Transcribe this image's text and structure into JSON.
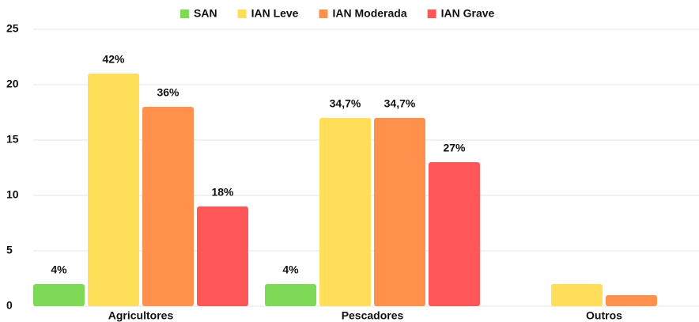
{
  "chart_data": {
    "type": "bar",
    "categories": [
      "Agricultores",
      "Pescadores",
      "Outros"
    ],
    "series": [
      {
        "name": "SAN",
        "color": "#7ed957",
        "values": [
          2,
          2,
          null
        ],
        "value_labels": [
          "4%",
          "4%",
          null
        ]
      },
      {
        "name": "IAN Leve",
        "color": "#ffde59",
        "values": [
          21,
          17,
          2
        ],
        "value_labels": [
          "42%",
          "34,7%",
          null
        ]
      },
      {
        "name": "IAN Moderada",
        "color": "#ff914d",
        "values": [
          18,
          17,
          1
        ],
        "value_labels": [
          "36%",
          "34,7%",
          null
        ]
      },
      {
        "name": "IAN Grave",
        "color": "#ff5757",
        "values": [
          9,
          13,
          null
        ],
        "value_labels": [
          "18%",
          "27%",
          null
        ]
      }
    ],
    "ylim": [
      0,
      25
    ],
    "yticks": [
      0,
      5,
      10,
      15,
      20,
      25
    ],
    "grid": true,
    "legend": "top"
  }
}
